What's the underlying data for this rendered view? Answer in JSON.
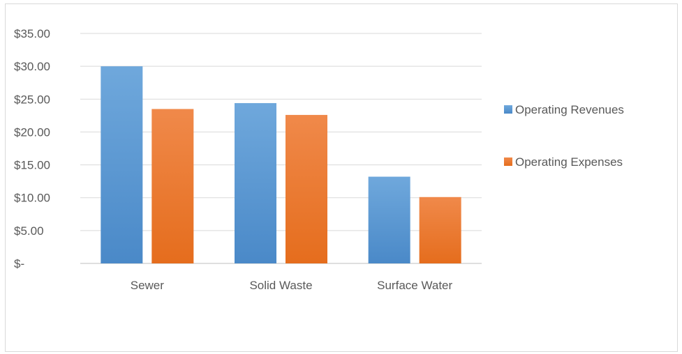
{
  "chart_data": {
    "type": "bar",
    "title": "",
    "xlabel": "",
    "ylabel": "",
    "categories": [
      "Sewer",
      "Solid Waste",
      "Surface Water"
    ],
    "series": [
      {
        "name": "Operating Revenues",
        "values": [
          30.0,
          24.4,
          13.2
        ],
        "color": "#5b9bd5"
      },
      {
        "name": "Operating Expenses",
        "values": [
          23.5,
          22.6,
          10.1
        ],
        "color": "#ed7d31"
      }
    ],
    "ylim": [
      0,
      35
    ],
    "yticks": [
      0,
      5,
      10,
      15,
      20,
      25,
      30,
      35
    ],
    "ytick_labels": [
      "$-",
      "$5.00",
      "$10.00",
      "$15.00",
      "$20.00",
      "$25.00",
      "$30.00",
      "$35.00"
    ],
    "grid": true,
    "legend_position": "right"
  }
}
